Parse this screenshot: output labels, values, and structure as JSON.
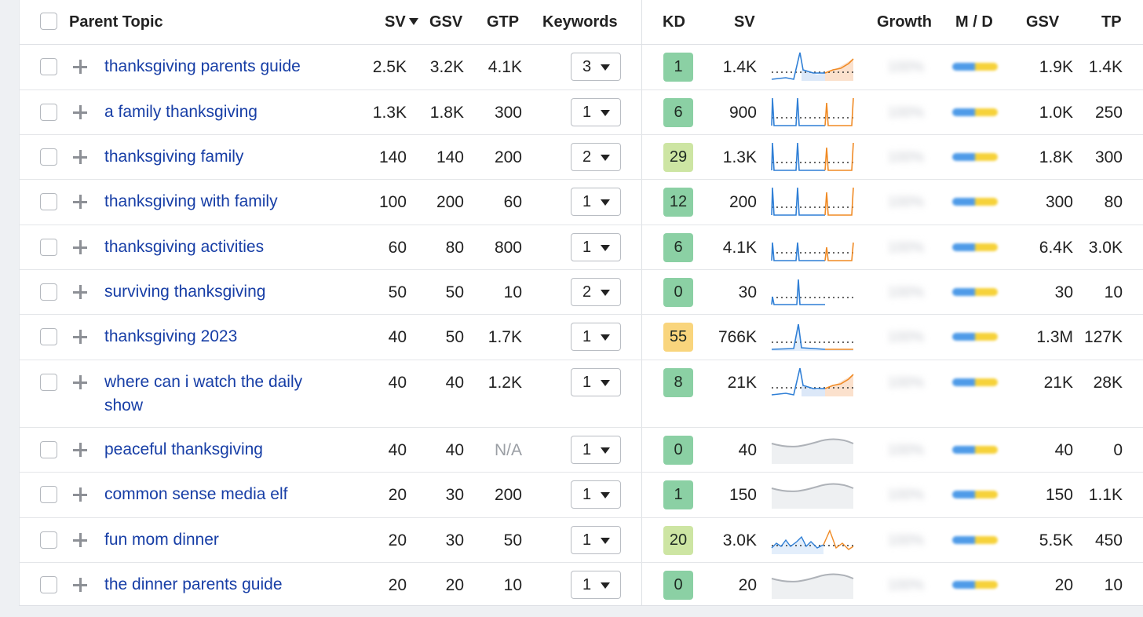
{
  "header": {
    "parent_topic": "Parent Topic",
    "sv": "SV",
    "gsv": "GSV",
    "gtp": "GTP",
    "keywords": "Keywords",
    "kd": "KD",
    "sv2": "SV",
    "growth": "Growth",
    "md": "M / D",
    "gsv2": "GSV",
    "tp": "TP"
  },
  "colors": {
    "link": "#173ea6",
    "kd_green": "#8bd0a4",
    "kd_lightgreen": "#cde5a3",
    "kd_yellow": "#f9d57d",
    "spark_blue": "#2f7fd6",
    "spark_orange": "#f08a24",
    "spark_gray": "#aeb2b8"
  },
  "growth_placeholder": "100%",
  "rows": [
    {
      "topic": "thanksgiving parents guide",
      "sv": "2.5K",
      "gsv": "3.2K",
      "gtp": "4.1K",
      "keywords": "3",
      "kd": "1",
      "kd_color": "kd_green",
      "sv2": "1.4K",
      "trend": "area-rising",
      "gsv2": "1.9K",
      "tp": "1.4K"
    },
    {
      "topic": "a family thanksgiving",
      "sv": "1.3K",
      "gsv": "1.8K",
      "gtp": "300",
      "keywords": "1",
      "kd": "6",
      "kd_color": "kd_green",
      "sv2": "900",
      "trend": "spikes",
      "gsv2": "1.0K",
      "tp": "250"
    },
    {
      "topic": "thanksgiving family",
      "sv": "140",
      "gsv": "140",
      "gtp": "200",
      "keywords": "2",
      "kd": "29",
      "kd_color": "kd_lightgreen",
      "sv2": "1.3K",
      "trend": "spikes",
      "gsv2": "1.8K",
      "tp": "300"
    },
    {
      "topic": "thanksgiving with family",
      "sv": "100",
      "gsv": "200",
      "gtp": "60",
      "keywords": "1",
      "kd": "12",
      "kd_color": "kd_green",
      "sv2": "200",
      "trend": "spikes",
      "gsv2": "300",
      "tp": "80"
    },
    {
      "topic": "thanksgiving activities",
      "sv": "60",
      "gsv": "80",
      "gtp": "800",
      "keywords": "1",
      "kd": "6",
      "kd_color": "kd_green",
      "sv2": "4.1K",
      "trend": "spikes-small",
      "gsv2": "6.4K",
      "tp": "3.0K"
    },
    {
      "topic": "surviving thanksgiving",
      "sv": "50",
      "gsv": "50",
      "gtp": "10",
      "keywords": "2",
      "kd": "0",
      "kd_color": "kd_green",
      "sv2": "30",
      "trend": "single-spike",
      "gsv2": "30",
      "tp": "10"
    },
    {
      "topic": "thanksgiving 2023",
      "sv": "40",
      "gsv": "50",
      "gtp": "1.7K",
      "keywords": "1",
      "kd": "55",
      "kd_color": "kd_yellow",
      "sv2": "766K",
      "trend": "single-spike-area",
      "gsv2": "1.3M",
      "tp": "127K"
    },
    {
      "topic": "where can i watch the daily show",
      "sv": "40",
      "gsv": "40",
      "gtp": "1.2K",
      "keywords": "1",
      "kd": "8",
      "kd_color": "kd_green",
      "sv2": "21K",
      "trend": "area-rising",
      "gsv2": "21K",
      "tp": "28K"
    },
    {
      "topic": "peaceful thanksgiving",
      "sv": "40",
      "gsv": "40",
      "gtp": "N/A",
      "keywords": "1",
      "kd": "0",
      "kd_color": "kd_green",
      "sv2": "40",
      "trend": "gray-wave",
      "gsv2": "40",
      "tp": "0"
    },
    {
      "topic": "common sense media elf",
      "sv": "20",
      "gsv": "30",
      "gtp": "200",
      "keywords": "1",
      "kd": "1",
      "kd_color": "kd_green",
      "sv2": "150",
      "trend": "gray-wave",
      "gsv2": "150",
      "tp": "1.1K"
    },
    {
      "topic": "fun mom dinner",
      "sv": "20",
      "gsv": "30",
      "gtp": "50",
      "keywords": "1",
      "kd": "20",
      "kd_color": "kd_lightgreen",
      "sv2": "3.0K",
      "trend": "noisy",
      "gsv2": "5.5K",
      "tp": "450"
    },
    {
      "topic": "the dinner parents guide",
      "sv": "20",
      "gsv": "20",
      "gtp": "10",
      "keywords": "1",
      "kd": "0",
      "kd_color": "kd_green",
      "sv2": "20",
      "trend": "gray-wave",
      "gsv2": "20",
      "tp": "10"
    }
  ]
}
